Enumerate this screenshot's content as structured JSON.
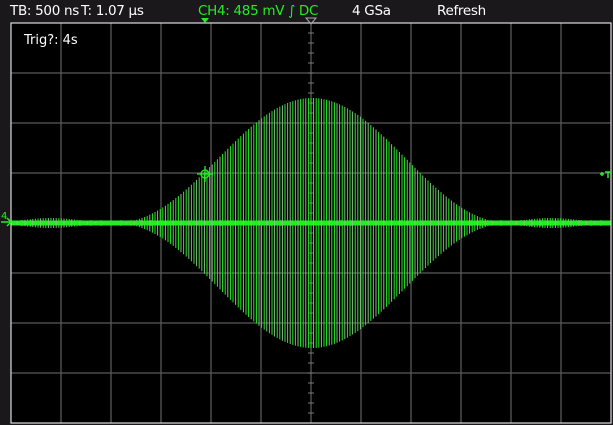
{
  "status_bar": {
    "timebase": "TB: 500 ns",
    "trigger_time": "T: 1.07 µs",
    "channel": "CH4: 485 mV ∫ DC",
    "sample_rate": "4 GSa",
    "mode": "Refresh"
  },
  "display": {
    "trigger_status": "Trig?: 4s",
    "channel_marker": "4",
    "trigger_level_marker": "T",
    "divisions_horizontal": 12,
    "divisions_vertical": 8
  },
  "colors": {
    "trace": "#22ee22",
    "grid": "#5a5a5a",
    "background": "#000000",
    "channel_text": "#22ee22"
  }
}
